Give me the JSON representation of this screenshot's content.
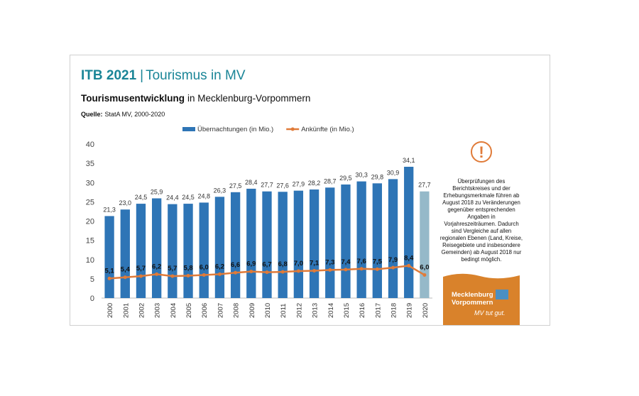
{
  "header": {
    "title_bold": "ITB 2021",
    "separator": "|",
    "title": "Tourismus in MV"
  },
  "subtitle": {
    "bold": "Tourismusentwicklung",
    "text": "in Mecklenburg-Vorpommern"
  },
  "source": {
    "label": "Quelle:",
    "text": "StatA MV, 2000-2020"
  },
  "chart_data": {
    "type": "bar",
    "categories": [
      "2000",
      "2001",
      "2002",
      "2003",
      "2004",
      "2005",
      "2006",
      "2007",
      "2008",
      "2009",
      "2010",
      "2011",
      "2012",
      "2013",
      "2014",
      "2015",
      "2016",
      "2017",
      "2018",
      "2019",
      "2020"
    ],
    "ylim": [
      0,
      40
    ],
    "yticks": [
      0,
      5,
      10,
      15,
      20,
      25,
      30,
      35,
      40
    ],
    "grid": false,
    "legend": "top",
    "series": [
      {
        "name": "Übernachtungen (in Mio.)",
        "type": "bar",
        "color": "#2e75b6",
        "colors": [
          "#2e75b6",
          "#2e75b6",
          "#2e75b6",
          "#2e75b6",
          "#2e75b6",
          "#2e75b6",
          "#2e75b6",
          "#2e75b6",
          "#2e75b6",
          "#2e75b6",
          "#2e75b6",
          "#2e75b6",
          "#2e75b6",
          "#2e75b6",
          "#2e75b6",
          "#2e75b6",
          "#2e75b6",
          "#2e75b6",
          "#2e75b6",
          "#2e75b6",
          "#95b9c9"
        ],
        "values": [
          21.3,
          23.0,
          24.5,
          25.9,
          24.4,
          24.5,
          24.8,
          26.3,
          27.5,
          28.4,
          27.7,
          27.6,
          27.9,
          28.2,
          28.7,
          29.5,
          30.3,
          29.8,
          30.9,
          34.1,
          27.7
        ],
        "value_labels": [
          "21,3",
          "23,0",
          "24,5",
          "25,9",
          "24,4",
          "24,5",
          "24,8",
          "26,3",
          "27,5",
          "28,4",
          "27,7",
          "27,6",
          "27,9",
          "28,2",
          "28,7",
          "29,5",
          "30,3",
          "29,8",
          "30,9",
          "34,1",
          "27,7"
        ]
      },
      {
        "name": "Ankünfte (in Mio.)",
        "type": "line",
        "color": "#e07b39",
        "values": [
          5.1,
          5.4,
          5.7,
          6.2,
          5.7,
          5.8,
          6.0,
          6.2,
          6.6,
          6.9,
          6.7,
          6.8,
          7.0,
          7.1,
          7.3,
          7.4,
          7.6,
          7.5,
          7.9,
          8.4,
          6.0
        ],
        "value_labels": [
          "5,1",
          "5,4",
          "5,7",
          "6,2",
          "5,7",
          "5,8",
          "6,0",
          "6,2",
          "6,6",
          "6,9",
          "6,7",
          "6,8",
          "7,0",
          "7,1",
          "7,3",
          "7,4",
          "7,6",
          "7,5",
          "7,9",
          "8,4",
          "6,0"
        ]
      }
    ]
  },
  "note": {
    "icon": "!",
    "lines": [
      "Überprüfungen des",
      "Berichtskreises und der",
      "Erhebungsmerkmale führen ab",
      "August 2018 zu Veränderungen",
      "gegenüber entsprechenden",
      "Angaben in",
      "Vorjahreszeiträumen. Dadurch",
      "sind Vergleiche auf allen",
      "regionalen Ebenen (Land, Kreise,",
      "Reisegebiete und insbesondere",
      "Gemeinden) ab August 2018 nur",
      "bedingt möglich."
    ]
  },
  "logo": {
    "line1": "Mecklenburg",
    "line2": "Vorpommern",
    "slogan": "MV tut gut."
  }
}
